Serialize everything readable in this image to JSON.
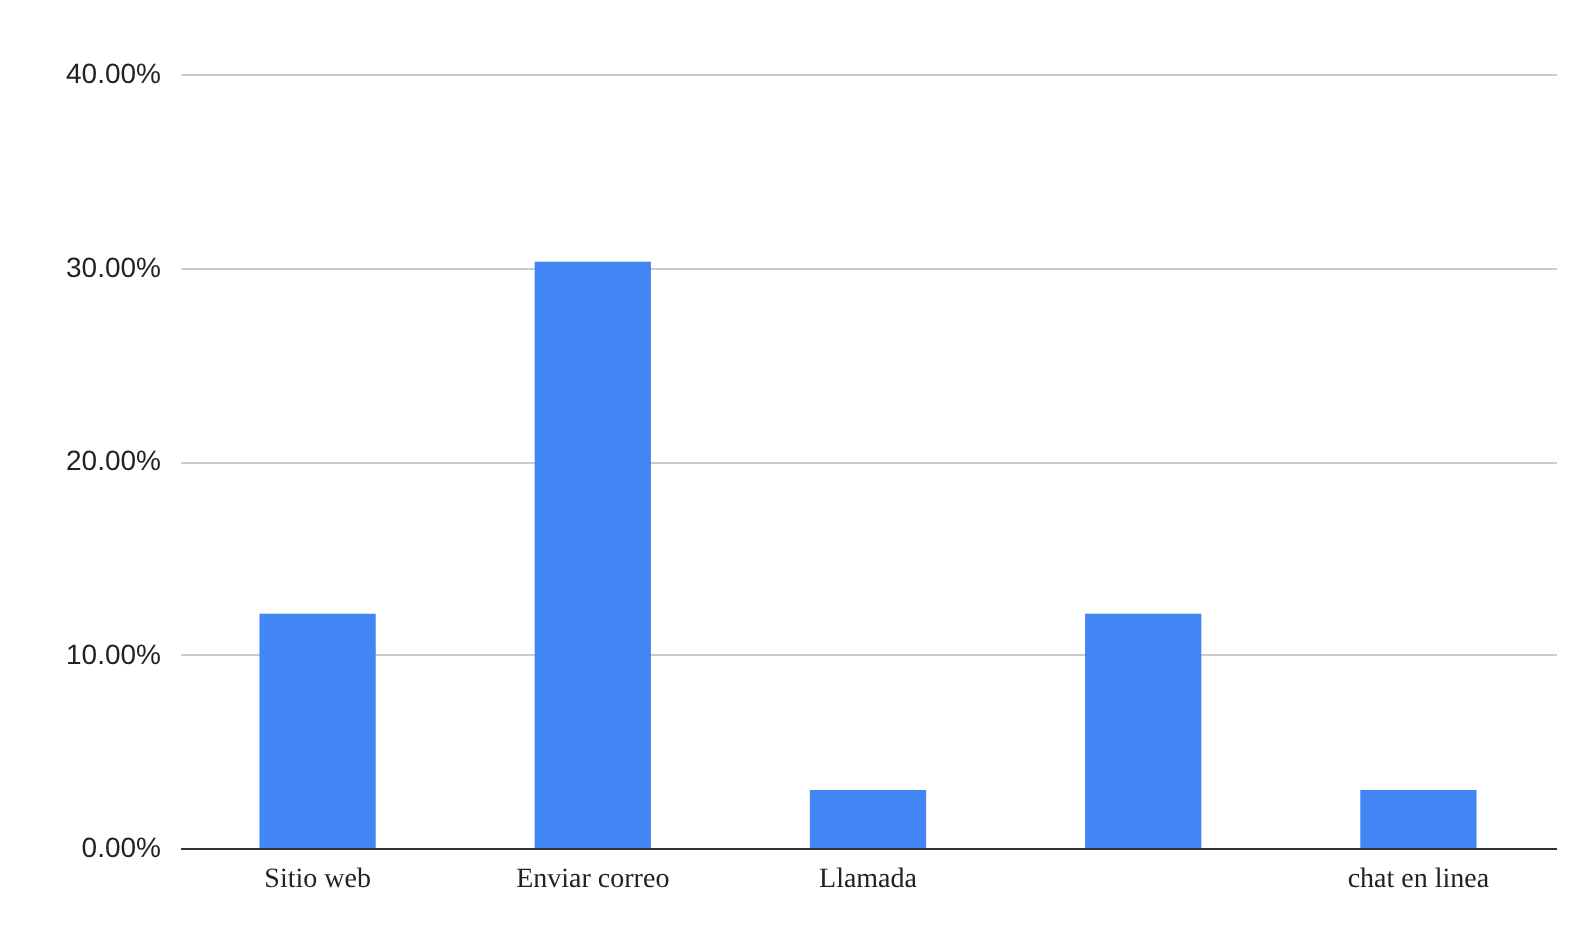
{
  "chart_data": {
    "type": "bar",
    "categories": [
      "Sitio web",
      "Enviar correo",
      "Llamada",
      null,
      "chat en linea"
    ],
    "values": [
      12.1,
      30.3,
      3.0,
      12.1,
      3.0
    ],
    "color": "#4285f4",
    "ylim": [
      0,
      40
    ],
    "yticks": [
      {
        "value": 0,
        "label": "0.00%"
      },
      {
        "value": 10,
        "label": "10.00%"
      },
      {
        "value": 20,
        "label": "20.00%"
      },
      {
        "value": 30,
        "label": "30.00%"
      },
      {
        "value": 40,
        "label": "40.00%"
      }
    ],
    "grid": true
  }
}
